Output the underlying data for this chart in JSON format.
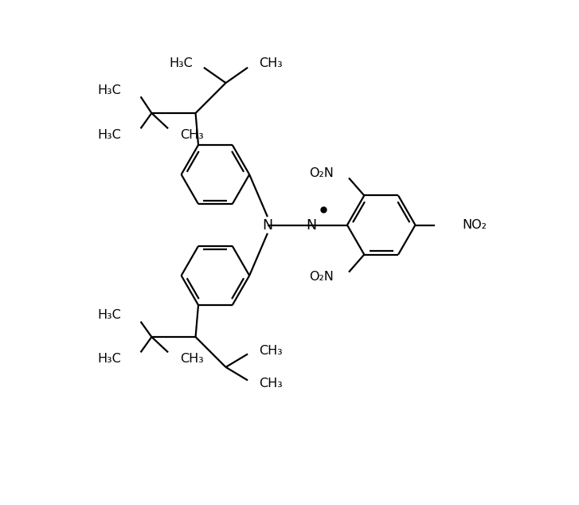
{
  "figsize": [
    7.27,
    6.34
  ],
  "dpi": 100,
  "bg_color": "#ffffff",
  "line_color": "#000000",
  "lw": 1.6,
  "fs": 11.5,
  "xlim": [
    -1.0,
    9.5
  ],
  "ylim": [
    0.0,
    9.0
  ]
}
